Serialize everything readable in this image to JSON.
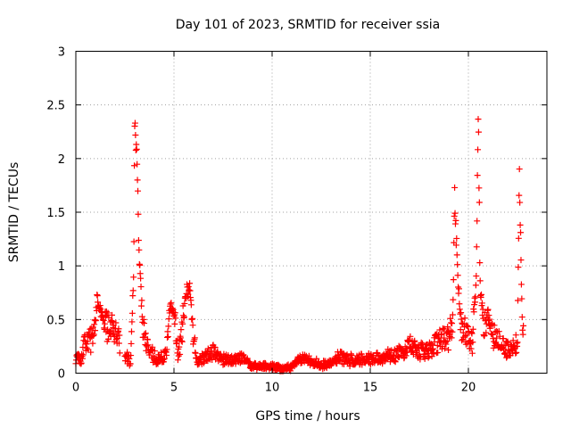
{
  "chart_data": {
    "type": "scatter",
    "title": "Day 101 of 2023, SRMTID for receiver ssia",
    "xlabel": "GPS time / hours",
    "ylabel": "SRMTID / TECUs",
    "xlim": [
      0,
      24
    ],
    "ylim": [
      0,
      3
    ],
    "xticks": [
      0,
      5,
      10,
      15,
      20
    ],
    "yticks": [
      0,
      0.5,
      1,
      1.5,
      2,
      2.5,
      3
    ],
    "xtick_labels": [
      "0",
      "5",
      "10",
      "15",
      "20"
    ],
    "ytick_labels": [
      "0",
      "0.5",
      "1",
      "1.5",
      "2",
      "2.5",
      "3"
    ],
    "grid": true,
    "marker": "+",
    "series": [
      {
        "name": "SRMTID ssia",
        "color": "#ff0000",
        "profile": [
          [
            0.0,
            0.15
          ],
          [
            0.3,
            0.12
          ],
          [
            0.45,
            0.3
          ],
          [
            0.9,
            0.32
          ],
          [
            1.1,
            0.72
          ],
          [
            1.3,
            0.55
          ],
          [
            1.5,
            0.47
          ],
          [
            1.8,
            0.45
          ],
          [
            2.2,
            0.3
          ],
          [
            2.5,
            0.15
          ],
          [
            2.8,
            0.12
          ],
          [
            2.95,
            1.0
          ],
          [
            3.0,
            2.33
          ],
          [
            3.1,
            2.0
          ],
          [
            3.25,
            1.0
          ],
          [
            3.4,
            0.5
          ],
          [
            3.7,
            0.2
          ],
          [
            4.2,
            0.13
          ],
          [
            4.6,
            0.18
          ],
          [
            4.8,
            0.65
          ],
          [
            5.0,
            0.55
          ],
          [
            5.2,
            0.15
          ],
          [
            5.4,
            0.35
          ],
          [
            5.6,
            0.75
          ],
          [
            5.8,
            0.82
          ],
          [
            6.0,
            0.3
          ],
          [
            6.2,
            0.1
          ],
          [
            7.0,
            0.2
          ],
          [
            7.5,
            0.12
          ],
          [
            8.5,
            0.15
          ],
          [
            9.0,
            0.07
          ],
          [
            10.0,
            0.06
          ],
          [
            10.5,
            0.04
          ],
          [
            11.0,
            0.06
          ],
          [
            11.5,
            0.14
          ],
          [
            12.0,
            0.1
          ],
          [
            12.5,
            0.08
          ],
          [
            13.0,
            0.1
          ],
          [
            13.5,
            0.15
          ],
          [
            14.0,
            0.12
          ],
          [
            15.0,
            0.13
          ],
          [
            16.0,
            0.16
          ],
          [
            16.5,
            0.2
          ],
          [
            17.0,
            0.25
          ],
          [
            17.5,
            0.2
          ],
          [
            18.0,
            0.22
          ],
          [
            18.5,
            0.3
          ],
          [
            19.0,
            0.32
          ],
          [
            19.2,
            0.5
          ],
          [
            19.3,
            1.6
          ],
          [
            19.45,
            1.0
          ],
          [
            19.6,
            0.45
          ],
          [
            19.9,
            0.35
          ],
          [
            20.2,
            0.3
          ],
          [
            20.4,
            0.9
          ],
          [
            20.5,
            2.48
          ],
          [
            20.6,
            0.8
          ],
          [
            20.8,
            0.45
          ],
          [
            21.0,
            0.45
          ],
          [
            21.3,
            0.35
          ],
          [
            21.8,
            0.25
          ],
          [
            22.2,
            0.2
          ],
          [
            22.5,
            0.3
          ],
          [
            22.6,
            1.9
          ],
          [
            22.75,
            0.35
          ],
          [
            22.8,
            0.4
          ]
        ],
        "gaps": [
          [
            2.25,
            2.5
          ]
        ],
        "sample_step_hours": 0.02,
        "scatter_fraction": 0.35
      }
    ]
  }
}
